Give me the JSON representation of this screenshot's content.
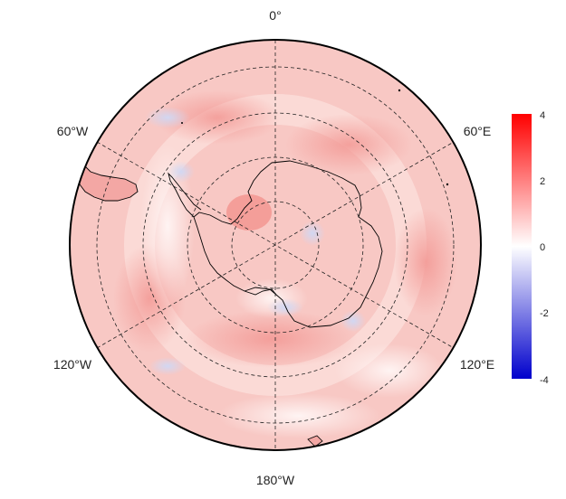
{
  "map": {
    "projection": "south-polar-stereographic",
    "longitude_labels": {
      "top": "0°",
      "upper_left": "60°W",
      "upper_right": "60°E",
      "lower_left": "120°W",
      "lower_right": "120°E",
      "bottom": "180°W"
    },
    "graticule": {
      "meridian_step_deg": 60,
      "latitude_circles": 4,
      "style": "dashed"
    },
    "field_colors": {
      "base": "#f8c8c4",
      "strong_positive": "#f39a96",
      "weak": "#fff4f3",
      "negative": "#cfd8f5",
      "coast": "#000000"
    }
  },
  "colorbar": {
    "ticks": [
      "4",
      "2",
      "0",
      "-2",
      "-4"
    ],
    "min": -4,
    "max": 4,
    "colors": {
      "max": "#ff0000",
      "mid": "#ffffff",
      "min": "#0000cc"
    }
  }
}
